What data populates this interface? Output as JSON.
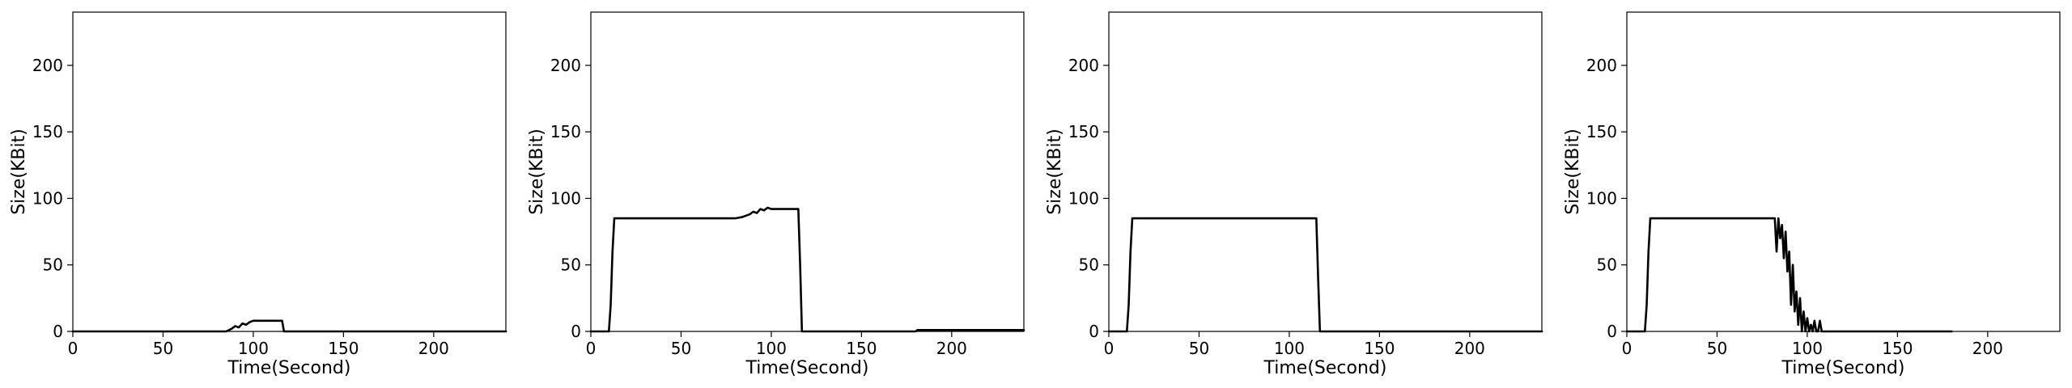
{
  "chart_data": [
    {
      "type": "line",
      "xlabel": "Time(Second)",
      "ylabel": "Size(KBit)",
      "xlim": [
        0,
        240
      ],
      "ylim": [
        0,
        240
      ],
      "xticks": [
        0,
        50,
        100,
        150,
        200
      ],
      "yticks": [
        0,
        50,
        100,
        150,
        200
      ],
      "grid": false,
      "series": [
        {
          "x": [
            0,
            85,
            88,
            90,
            92,
            94,
            96,
            98,
            100,
            104,
            108,
            112,
            116,
            117,
            240
          ],
          "y": [
            0,
            0,
            2,
            4,
            3,
            6,
            5,
            7,
            8,
            8,
            8,
            8,
            8,
            0,
            0
          ]
        }
      ]
    },
    {
      "type": "line",
      "xlabel": "Time(Second)",
      "ylabel": "Size(KBit)",
      "xlim": [
        0,
        240
      ],
      "ylim": [
        0,
        240
      ],
      "xticks": [
        0,
        50,
        100,
        150,
        200
      ],
      "yticks": [
        0,
        50,
        100,
        150,
        200
      ],
      "grid": false,
      "series": [
        {
          "x": [
            0,
            10,
            11,
            12,
            13,
            20,
            30,
            40,
            50,
            60,
            70,
            80,
            84,
            88,
            90,
            92,
            94,
            96,
            98,
            100,
            105,
            110,
            115,
            116,
            117,
            180,
            181,
            240
          ],
          "y": [
            0,
            0,
            20,
            60,
            85,
            85,
            85,
            85,
            85,
            85,
            85,
            85,
            86,
            88,
            90,
            89,
            92,
            91,
            93,
            92,
            92,
            92,
            92,
            50,
            0,
            0,
            1,
            1
          ]
        }
      ]
    },
    {
      "type": "line",
      "xlabel": "Time(Second)",
      "ylabel": "Size(KBit)",
      "xlim": [
        0,
        240
      ],
      "ylim": [
        0,
        240
      ],
      "xticks": [
        0,
        50,
        100,
        150,
        200
      ],
      "yticks": [
        0,
        50,
        100,
        150,
        200
      ],
      "grid": false,
      "series": [
        {
          "x": [
            0,
            10,
            11,
            12,
            13,
            20,
            40,
            60,
            80,
            100,
            115,
            116,
            117,
            240
          ],
          "y": [
            0,
            0,
            20,
            60,
            85,
            85,
            85,
            85,
            85,
            85,
            85,
            40,
            0,
            0
          ]
        }
      ]
    },
    {
      "type": "line",
      "xlabel": "Time(Second)",
      "ylabel": "Size(KBit)",
      "xlim": [
        0,
        240
      ],
      "ylim": [
        0,
        240
      ],
      "xticks": [
        0,
        50,
        100,
        150,
        200
      ],
      "yticks": [
        0,
        50,
        100,
        150,
        200
      ],
      "grid": false,
      "series": [
        {
          "x": [
            0,
            10,
            11,
            12,
            13,
            20,
            40,
            60,
            80,
            82,
            83,
            84,
            85,
            86,
            87,
            88,
            89,
            90,
            91,
            92,
            93,
            94,
            95,
            96,
            97,
            98,
            99,
            100,
            101,
            102,
            103,
            104,
            105,
            106,
            107,
            108,
            109,
            110,
            180
          ],
          "y": [
            0,
            0,
            20,
            60,
            85,
            85,
            85,
            85,
            85,
            85,
            60,
            85,
            70,
            80,
            55,
            75,
            45,
            60,
            20,
            50,
            15,
            30,
            5,
            25,
            0,
            15,
            0,
            10,
            0,
            5,
            0,
            8,
            0,
            0,
            8,
            0,
            0,
            0,
            0
          ]
        }
      ]
    }
  ]
}
